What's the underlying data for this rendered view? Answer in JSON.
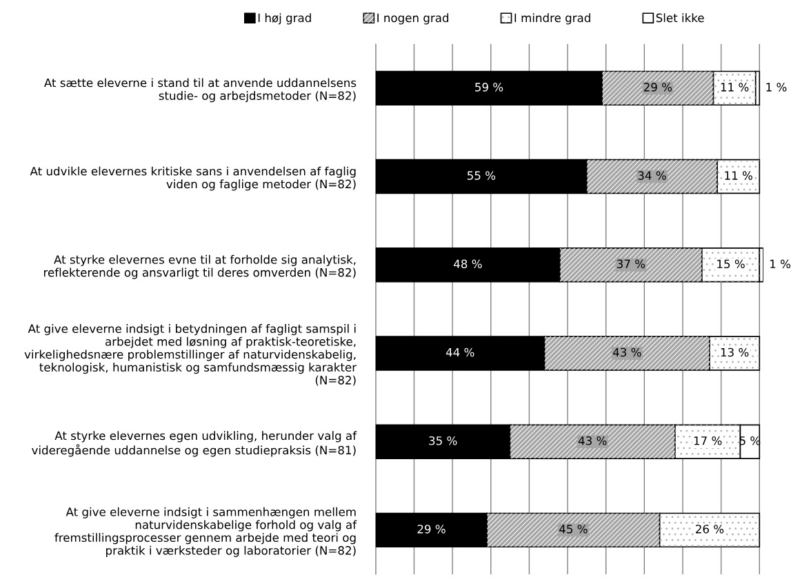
{
  "chart_data": {
    "type": "bar",
    "orientation": "horizontal",
    "stacked": true,
    "categories": [
      "At sætte eleverne i stand til at anvende uddannelsens\nstudie- og arbejdsmetoder (N=82)",
      "At udvikle elevernes kritiske sans i anvendelsen af faglig\nviden og faglige metoder (N=82)",
      "At styrke elevernes evne til at forholde sig analytisk,\nreflekterende og ansvarligt til deres omverden (N=82)",
      "At give eleverne indsigt i betydningen af fagligt samspil i\narbejdet med løsning af praktisk-teoretiske,\nvirkelighedsnære problemstillinger af naturvidenskabelig,\nteknologisk, humanistisk og samfundsmæssig karakter\n(N=82)",
      "At styrke elevernes egen udvikling, herunder valg af\nvideregående uddannelse og egen studiepraksis (N=81)",
      "At give eleverne indsigt i sammenhængen mellem\nnaturvidenskabelige forhold og valg af\nfremstillingsprocesser gennem arbejde med teori og\npraktik i værksteder og laboratorier (N=82)"
    ],
    "series": [
      {
        "name": "I høj grad",
        "color": "#000000",
        "values": [
          59,
          55,
          48,
          44,
          35,
          29
        ],
        "value_labels": [
          "59 %",
          "55 %",
          "48 %",
          "44 %",
          "35 %",
          "29 %"
        ]
      },
      {
        "name": "I nogen grad",
        "color": "#a6a6a6",
        "values": [
          29,
          34,
          37,
          43,
          43,
          45
        ],
        "value_labels": [
          "29 %",
          "34 %",
          "37 %",
          "43 %",
          "43 %",
          "45 %"
        ]
      },
      {
        "name": "I mindre grad",
        "color": "#ffffff",
        "values": [
          11,
          11,
          15,
          13,
          17,
          26
        ],
        "value_labels": [
          "11 %",
          "11 %",
          "15 %",
          "13 %",
          "17 %",
          "26 %"
        ]
      },
      {
        "name": "Slet ikke",
        "color": "#ffffff",
        "values": [
          1,
          0,
          1,
          0,
          5,
          0
        ],
        "value_labels": [
          "1 %",
          null,
          "1 %",
          null,
          "5 %",
          null
        ]
      }
    ],
    "xticks": [
      {
        "value": 0,
        "label": null
      },
      {
        "value": 10,
        "label": null
      },
      {
        "value": 20,
        "label": null
      },
      {
        "value": 30,
        "label": null
      },
      {
        "value": 40,
        "label": null
      },
      {
        "value": 50,
        "label": null
      },
      {
        "value": 60,
        "label": null
      },
      {
        "value": 70,
        "label": null
      },
      {
        "value": 80,
        "label": null
      },
      {
        "value": 90,
        "label": null
      },
      {
        "value": 100,
        "label": null
      }
    ],
    "tick_labels": "y",
    "grid": "x",
    "legend": "top"
  }
}
